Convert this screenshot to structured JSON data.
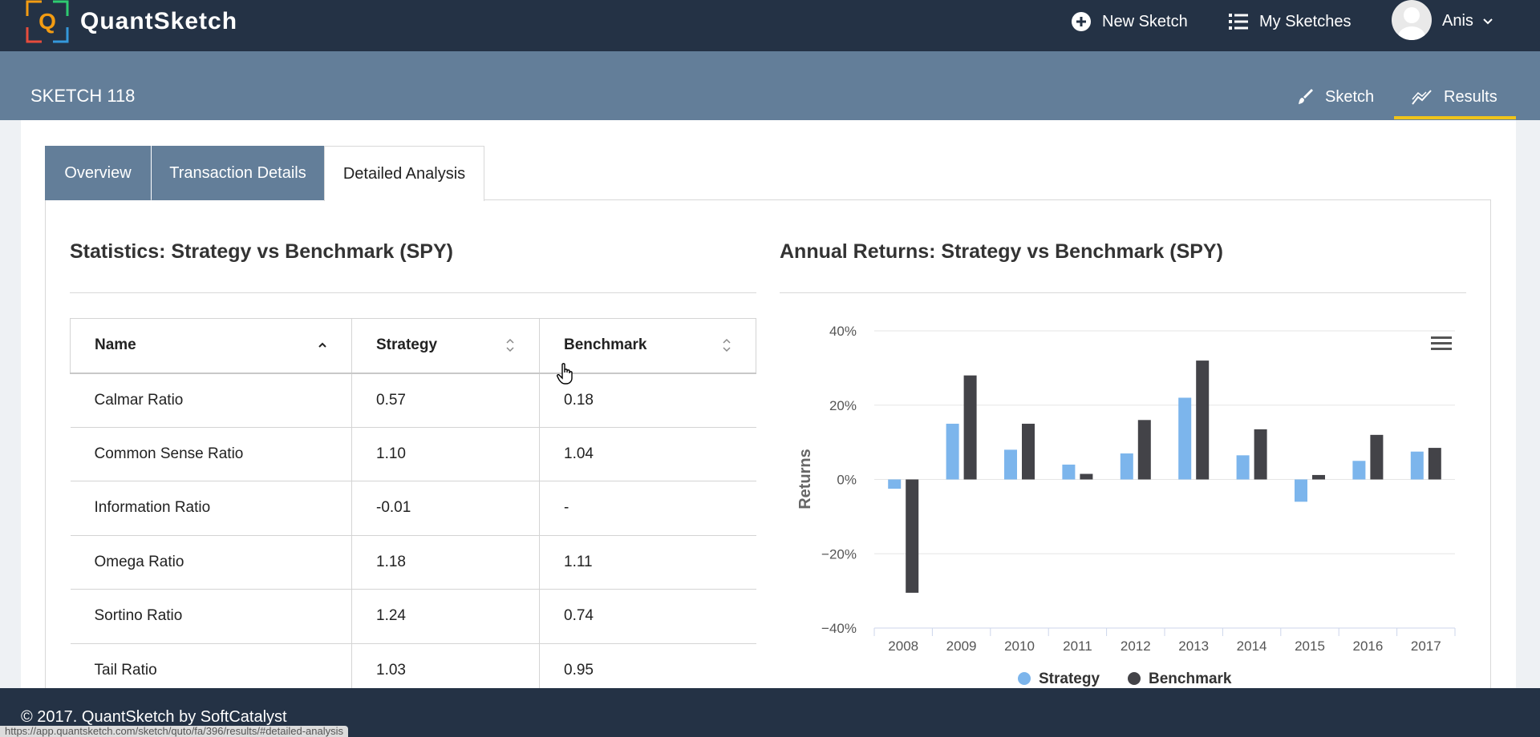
{
  "app": {
    "brand_letter": "Q",
    "brand_name": "QuantSketch"
  },
  "topnav": {
    "new_sketch": "New Sketch",
    "my_sketches": "My Sketches",
    "user_name": "Anis"
  },
  "sketch": {
    "title": "SKETCH 118",
    "tab_sketch": "Sketch",
    "tab_results": "Results"
  },
  "tabs": [
    {
      "label": "Overview",
      "active": false
    },
    {
      "label": "Transaction Details",
      "active": false
    },
    {
      "label": "Detailed Analysis",
      "active": true
    }
  ],
  "stats": {
    "title": "Statistics: Strategy vs Benchmark (SPY)",
    "columns": [
      "Name",
      "Strategy",
      "Benchmark"
    ],
    "rows": [
      {
        "name": "Calmar Ratio",
        "strategy": "0.57",
        "benchmark": "0.18"
      },
      {
        "name": "Common Sense Ratio",
        "strategy": "1.10",
        "benchmark": "1.04"
      },
      {
        "name": "Information Ratio",
        "strategy": "-0.01",
        "benchmark": "-"
      },
      {
        "name": "Omega Ratio",
        "strategy": "1.18",
        "benchmark": "1.11"
      },
      {
        "name": "Sortino Ratio",
        "strategy": "1.24",
        "benchmark": "0.74"
      },
      {
        "name": "Tail Ratio",
        "strategy": "1.03",
        "benchmark": "0.95"
      }
    ]
  },
  "chart_data": {
    "type": "bar",
    "title": "Annual Returns: Strategy vs Benchmark (SPY)",
    "xlabel": "",
    "ylabel": "Returns",
    "ylim": [
      -40,
      40
    ],
    "yticks": [
      40,
      20,
      0,
      -20,
      -40
    ],
    "ytick_labels": [
      "40%",
      "20%",
      "0%",
      "−20%",
      "−40%"
    ],
    "categories": [
      "2008",
      "2009",
      "2010",
      "2011",
      "2012",
      "2013",
      "2014",
      "2015",
      "2016",
      "2017"
    ],
    "series": [
      {
        "name": "Strategy",
        "color": "#7cb5ec",
        "values": [
          -2.5,
          15,
          8,
          4,
          7,
          22,
          6.5,
          -6,
          5,
          7.5
        ]
      },
      {
        "name": "Benchmark",
        "color": "#434348",
        "values": [
          -30.5,
          28,
          15,
          1.5,
          16,
          32,
          13.5,
          1.2,
          12,
          8.5
        ]
      }
    ],
    "grid": true,
    "legend": "bottom-center"
  },
  "footer": {
    "copyright": "© 2017. QuantSketch by SoftCatalyst",
    "status_url": "https://app.quantsketch.com/sketch/quto/fa/396/results/#detailed-analysis"
  },
  "colors": {
    "topbar": "#243245",
    "subbar": "#637e99",
    "accent": "#f0c419"
  }
}
